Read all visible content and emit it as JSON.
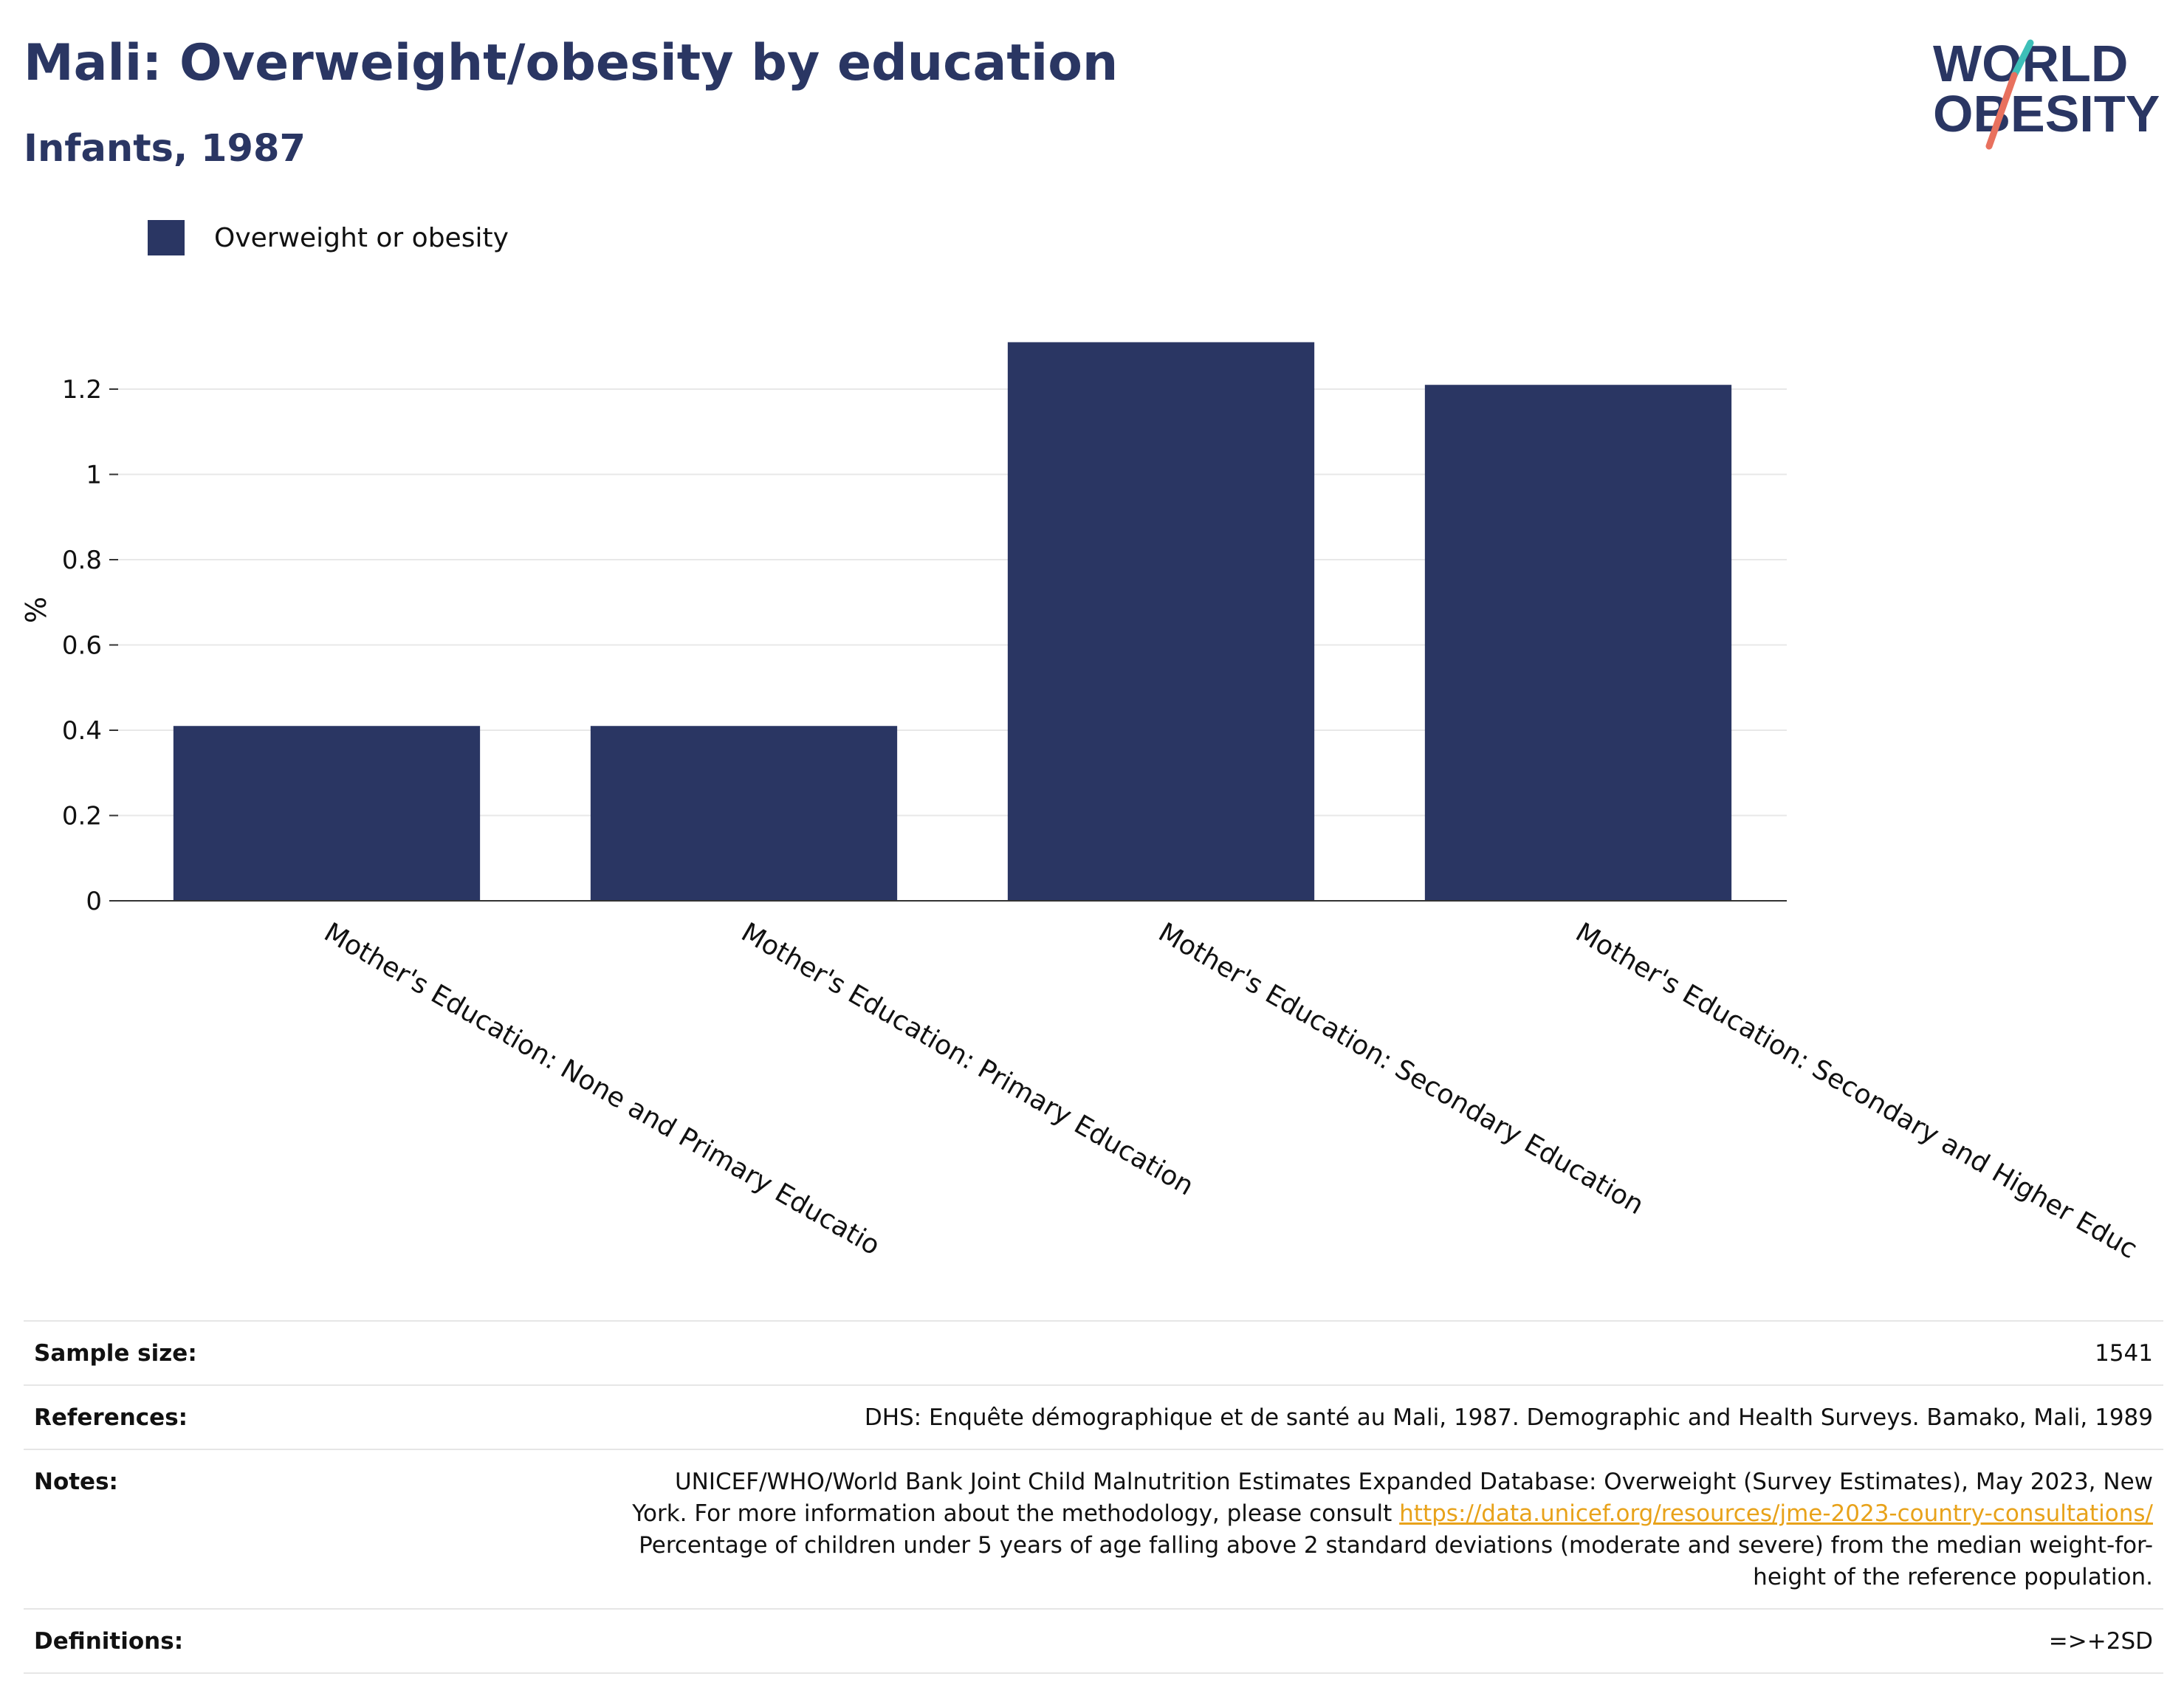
{
  "title": "Mali: Overweight/obesity by education",
  "subtitle": "Infants, 1987",
  "logo": {
    "line1": "WORLD",
    "line2": "OBESITY"
  },
  "colors": {
    "bar": "#2a3663",
    "title": "#2a3663",
    "link": "#e8a21a",
    "logo_teal": "#3dbfb8",
    "logo_coral": "#e8715e"
  },
  "chart_data": {
    "type": "bar",
    "categories": [
      "Mother's Education: None and Primary Educatio",
      "Mother's Education: Primary Education",
      "Mother's Education: Secondary Education",
      "Mother's Education: Secondary and Higher Educ"
    ],
    "series": [
      {
        "name": "Overweight or obesity",
        "values": [
          0.41,
          0.41,
          1.31,
          1.21
        ]
      }
    ],
    "ylabel": "%",
    "ylim": [
      0,
      1.3
    ],
    "yticks": [
      0,
      0.2,
      0.4,
      0.6,
      0.8,
      1,
      1.2
    ],
    "ytick_labels": [
      "0",
      "0.2",
      "0.4",
      "0.6",
      "0.8",
      "1",
      "1.2"
    ],
    "grid": true,
    "legend_position": "top-left"
  },
  "footer": {
    "sample_size": {
      "label": "Sample size:",
      "value": "1541"
    },
    "references": {
      "label": "References:",
      "value": "DHS: Enquête démographique et de santé au Mali, 1987. Demographic and Health Surveys. Bamako, Mali, 1989"
    },
    "notes": {
      "label": "Notes:",
      "text1": "UNICEF/WHO/World Bank Joint Child Malnutrition Estimates Expanded Database: Overweight (Survey Estimates), May 2023, New York. For more information about the methodology, please consult ",
      "link": "https://data.unicef.org/resources/jme-2023-country-consultations/",
      "text2": " Percentage of children under 5 years of age falling above 2 standard deviations (moderate and severe) from the median weight-for-height of the reference population."
    },
    "definitions": {
      "label": "Definitions:",
      "value": "=>+2SD"
    }
  }
}
